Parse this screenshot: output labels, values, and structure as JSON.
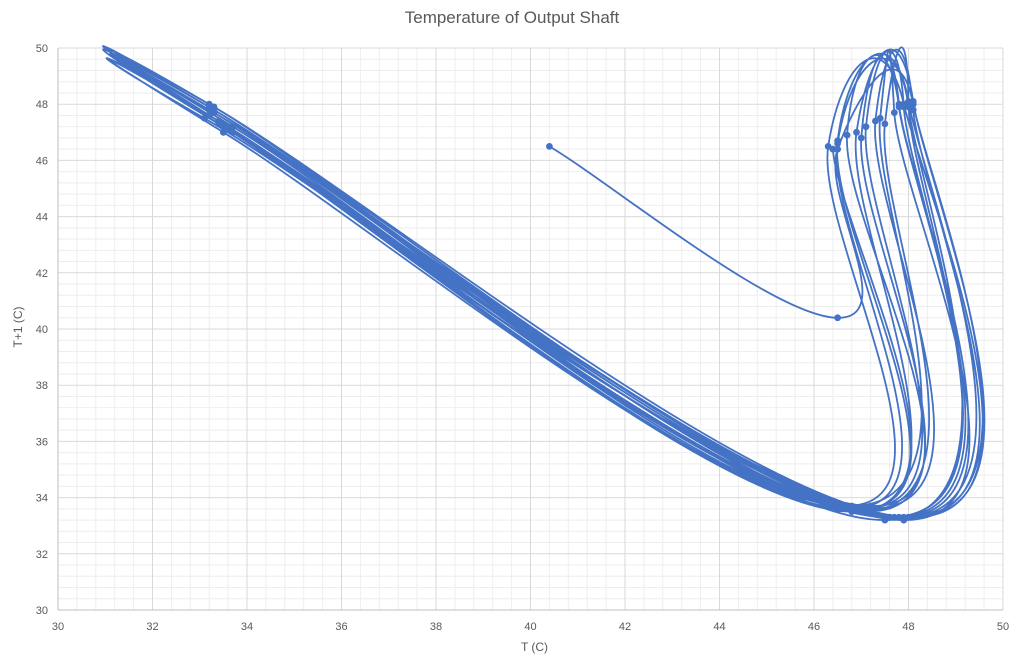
{
  "chart_data": {
    "type": "scatter",
    "title": "Temperature of Output Shaft",
    "xlabel": "T (C)",
    "ylabel": "T+1 (C)",
    "xlim": [
      30,
      50
    ],
    "ylim": [
      30,
      50
    ],
    "x_ticks": [
      "30",
      "32",
      "34",
      "36",
      "38",
      "40",
      "42",
      "44",
      "46",
      "48",
      "50"
    ],
    "y_ticks": [
      "30",
      "32",
      "34",
      "36",
      "38",
      "40",
      "42",
      "44",
      "46",
      "48",
      "50"
    ],
    "grid": true,
    "minor_grid": true,
    "legend": "none",
    "series_color": "#4472C4",
    "series": [
      {
        "points": [
          [
            40.4,
            46.5
          ],
          [
            46.5,
            40.4
          ],
          [
            46.5,
            46.4
          ],
          [
            48.1,
            48.0
          ],
          [
            48.0,
            33.3
          ],
          [
            33.1,
            47.5
          ],
          [
            33.6,
            47.2
          ],
          [
            46.6,
            33.7
          ],
          [
            46.3,
            46.5
          ],
          [
            47.9,
            48.0
          ],
          [
            48.1,
            33.3
          ],
          [
            33.2,
            48.0
          ],
          [
            33.4,
            47.4
          ],
          [
            46.9,
            33.6
          ],
          [
            46.5,
            46.7
          ],
          [
            48.0,
            48.1
          ],
          [
            47.9,
            33.3
          ],
          [
            33.3,
            47.9
          ],
          [
            33.5,
            47.3
          ],
          [
            47.2,
            33.7
          ],
          [
            46.7,
            46.9
          ],
          [
            47.8,
            47.9
          ],
          [
            47.7,
            33.3
          ],
          [
            33.2,
            47.8
          ],
          [
            33.6,
            47.1
          ],
          [
            46.8,
            33.5
          ],
          [
            46.9,
            47.0
          ],
          [
            48.1,
            48.1
          ],
          [
            48.1,
            33.3
          ],
          [
            33.3,
            47.7
          ],
          [
            33.7,
            47.2
          ],
          [
            47.0,
            33.6
          ],
          [
            47.1,
            47.2
          ],
          [
            47.9,
            47.9
          ],
          [
            47.6,
            33.3
          ],
          [
            33.2,
            47.6
          ],
          [
            33.5,
            47.0
          ],
          [
            46.7,
            33.6
          ],
          [
            46.5,
            46.6
          ],
          [
            48.0,
            47.9
          ],
          [
            47.5,
            33.2
          ],
          [
            33.3,
            47.8
          ],
          [
            33.6,
            47.1
          ],
          [
            47.1,
            33.5
          ],
          [
            47.0,
            46.8
          ],
          [
            47.8,
            48.0
          ],
          [
            47.8,
            33.3
          ],
          [
            33.2,
            47.9
          ],
          [
            33.4,
            47.3
          ],
          [
            47.2,
            33.6
          ],
          [
            47.3,
            47.4
          ],
          [
            48.1,
            47.8
          ],
          [
            48.0,
            33.3
          ],
          [
            33.3,
            47.7
          ],
          [
            33.5,
            47.2
          ],
          [
            46.8,
            33.7
          ],
          [
            47.4,
            47.5
          ],
          [
            47.7,
            47.7
          ],
          [
            47.9,
            33.2
          ],
          [
            33.2,
            47.8
          ],
          [
            33.7,
            47.0
          ],
          [
            47.0,
            33.5
          ],
          [
            47.5,
            47.3
          ],
          [
            48.0,
            48.0
          ],
          [
            47.6,
            33.3
          ],
          [
            33.3,
            47.9
          ],
          [
            33.5,
            47.2
          ],
          [
            46.9,
            33.6
          ],
          [
            46.4,
            46.4
          ]
        ]
      }
    ]
  }
}
